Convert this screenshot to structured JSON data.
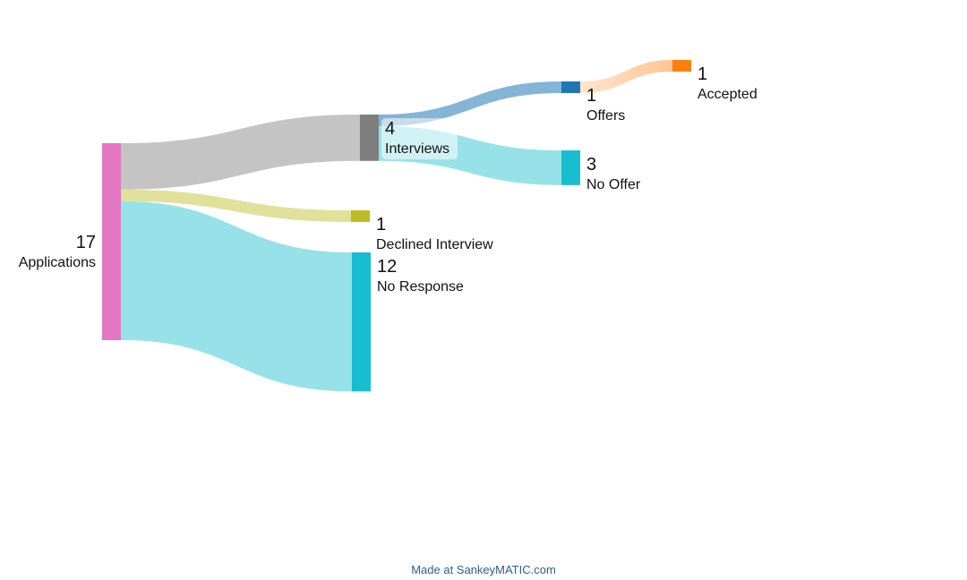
{
  "chart_data": {
    "type": "sankey",
    "nodes": [
      {
        "id": "applications",
        "label": "Applications",
        "value": 17,
        "color": "#e377c2"
      },
      {
        "id": "interviews",
        "label": "Interviews",
        "value": 4,
        "color": "#7f7f7f"
      },
      {
        "id": "declined",
        "label": "Declined Interview",
        "value": 1,
        "color": "#bcbd22"
      },
      {
        "id": "no-response",
        "label": "No Response",
        "value": 12,
        "color": "#17becf"
      },
      {
        "id": "offers",
        "label": "Offers",
        "value": 1,
        "color": "#1f77b4"
      },
      {
        "id": "no-offer",
        "label": "No Offer",
        "value": 3,
        "color": "#17becf"
      },
      {
        "id": "accepted",
        "label": "Accepted",
        "value": 1,
        "color": "#ff7f0e"
      }
    ],
    "links": [
      {
        "source": "applications",
        "target": "interviews",
        "value": 4
      },
      {
        "source": "applications",
        "target": "declined",
        "value": 1
      },
      {
        "source": "applications",
        "target": "no-response",
        "value": 12
      },
      {
        "source": "interviews",
        "target": "offers",
        "value": 1
      },
      {
        "source": "interviews",
        "target": "no-offer",
        "value": 3
      },
      {
        "source": "offers",
        "target": "accepted",
        "value": 1
      }
    ]
  },
  "footer": {
    "credit": "Made at SankeyMATIC.com"
  }
}
